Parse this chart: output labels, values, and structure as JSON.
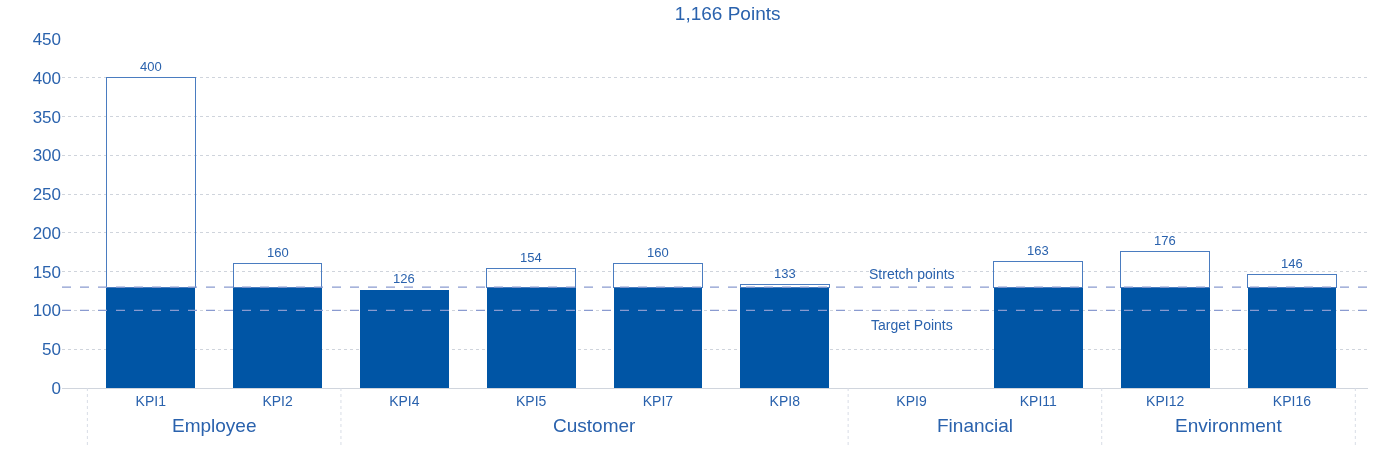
{
  "chart_data": {
    "type": "bar",
    "title": "1,166 Points",
    "stacked": true,
    "categories": [
      "KPI1",
      "KPI2",
      "KPI4",
      "KPI5",
      "KPI7",
      "KPI8",
      "KPI9",
      "KPI11",
      "KPI12",
      "KPI16"
    ],
    "series": [
      {
        "color": "#0055a5",
        "values": [
          130,
          130,
          126,
          130,
          130,
          130,
          null,
          130,
          130,
          130
        ]
      },
      {
        "color": "#4a7cc0",
        "values": [
          270,
          30,
          null,
          24,
          30,
          3,
          null,
          33,
          46,
          16
        ]
      }
    ],
    "totals": [
      "400",
      "160",
      "126",
      "154",
      "160",
      "133",
      null,
      "163",
      "176",
      "146"
    ],
    "ylim": [
      0,
      450
    ],
    "yticks": [
      0,
      50,
      100,
      150,
      200,
      250,
      300,
      350,
      400,
      450
    ],
    "grid": "y",
    "ref_lines": [
      {
        "axis": "y",
        "value": 130,
        "label": "Stretch points",
        "color": "#8a9bd0",
        "line_style": "dashed"
      },
      {
        "axis": "y",
        "value": 100,
        "label": "Target Points",
        "color": "#8a9bd0",
        "line_style": "dashed"
      }
    ],
    "annotations": [
      "Employee",
      "Customer",
      "Financial",
      "Environment"
    ]
  }
}
